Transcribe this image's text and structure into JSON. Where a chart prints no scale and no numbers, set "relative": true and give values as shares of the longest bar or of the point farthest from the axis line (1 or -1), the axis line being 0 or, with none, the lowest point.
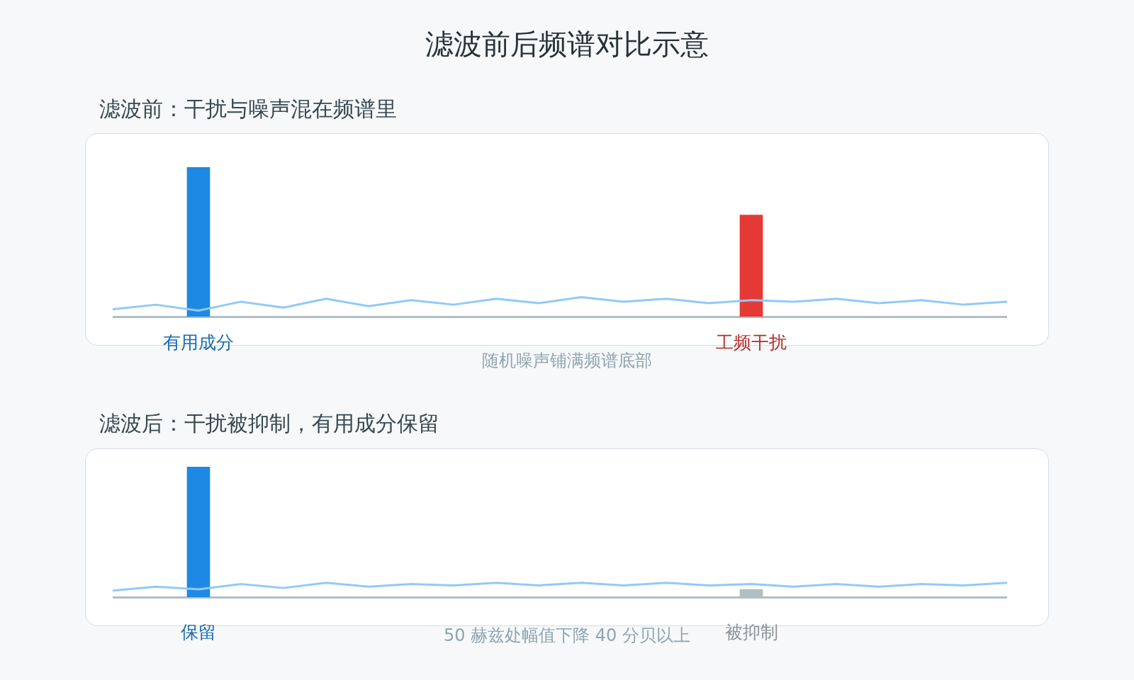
{
  "chart_data": [
    {
      "type": "bar",
      "title": "滤波前后频谱对比示意",
      "subtitle": "滤波前：干扰与噪声混在频谱里",
      "relative": true,
      "tick_labels": "x",
      "categories": [
        null,
        null,
        "有用成分",
        null,
        null,
        null,
        null,
        null,
        null,
        null,
        null,
        null,
        null,
        null,
        null,
        "工频干扰",
        null,
        null,
        null,
        null,
        null,
        null
      ],
      "series": [
        {
          "type": "line",
          "color": "#90caf9",
          "values": [
            0.05,
            0.08,
            0.04,
            0.1,
            0.06,
            0.12,
            0.07,
            0.11,
            0.08,
            0.12,
            0.09,
            0.13,
            0.1,
            0.12,
            0.09,
            0.11,
            0.1,
            0.12,
            0.09,
            0.11,
            0.08,
            0.1
          ]
        },
        {
          "color": "#1e88e5",
          "values": [
            null,
            null,
            1,
            null,
            null,
            null,
            null,
            null,
            null,
            null,
            null,
            null,
            null,
            null,
            null,
            null,
            null,
            null,
            null,
            null,
            null,
            null
          ]
        },
        {
          "color": "#e53935",
          "values": [
            null,
            null,
            null,
            null,
            null,
            null,
            null,
            null,
            null,
            null,
            null,
            null,
            null,
            null,
            null,
            0.68,
            null,
            null,
            null,
            null,
            null,
            null
          ]
        }
      ],
      "annotations": [
        "随机噪声铺满频谱底部"
      ]
    },
    {
      "type": "bar",
      "subtitle": "滤波后：干扰被抑制，有用成分保留",
      "relative": true,
      "tick_labels": "x",
      "categories": [
        null,
        null,
        "保留",
        null,
        null,
        null,
        null,
        null,
        null,
        null,
        null,
        null,
        null,
        null,
        null,
        "被抑制",
        null,
        null,
        null,
        null,
        null,
        null
      ],
      "series": [
        {
          "type": "line",
          "color": "#90caf9",
          "values": [
            0.05,
            0.08,
            0.06,
            0.1,
            0.07,
            0.11,
            0.08,
            0.1,
            0.09,
            0.11,
            0.09,
            0.11,
            0.09,
            0.11,
            0.09,
            0.1,
            0.08,
            0.1,
            0.08,
            0.1,
            0.09,
            0.11
          ]
        },
        {
          "color": "#1e88e5",
          "values": [
            null,
            null,
            1,
            null,
            null,
            null,
            null,
            null,
            null,
            null,
            null,
            null,
            null,
            null,
            null,
            null,
            null,
            null,
            null,
            null,
            null,
            null
          ]
        },
        {
          "color": "#b0bec5",
          "values": [
            null,
            null,
            null,
            null,
            null,
            null,
            null,
            null,
            null,
            null,
            null,
            null,
            null,
            null,
            null,
            0.06,
            null,
            null,
            null,
            null,
            null,
            null
          ]
        }
      ],
      "annotations": [
        "50 赫兹处幅值下降 40 分贝以上"
      ]
    }
  ]
}
